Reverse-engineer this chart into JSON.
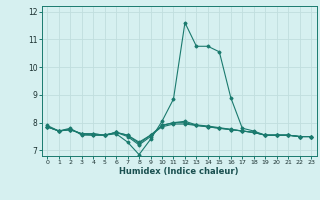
{
  "xlabel": "Humidex (Indice chaleur)",
  "background_color": "#d6f0f0",
  "grid_color": "#c0dede",
  "line_color": "#1a7a6e",
  "xlim": [
    -0.5,
    23.5
  ],
  "ylim": [
    6.8,
    12.2
  ],
  "yticks": [
    7,
    8,
    9,
    10,
    11,
    12
  ],
  "xticks": [
    0,
    1,
    2,
    3,
    4,
    5,
    6,
    7,
    8,
    9,
    10,
    11,
    12,
    13,
    14,
    15,
    16,
    17,
    18,
    19,
    20,
    21,
    22,
    23
  ],
  "series": [
    [
      7.9,
      7.7,
      7.8,
      7.55,
      7.55,
      7.55,
      7.6,
      7.3,
      6.85,
      7.4,
      8.05,
      8.85,
      11.6,
      10.75,
      10.75,
      10.55,
      8.9,
      7.8,
      7.7,
      7.55,
      7.55,
      7.55,
      7.5,
      7.5
    ],
    [
      7.85,
      7.7,
      7.75,
      7.6,
      7.55,
      7.55,
      7.65,
      7.5,
      7.2,
      7.5,
      7.9,
      8.0,
      8.0,
      7.9,
      7.85,
      7.8,
      7.75,
      7.7,
      7.65,
      7.55,
      7.55,
      7.55,
      7.5,
      7.5
    ],
    [
      7.85,
      7.7,
      7.75,
      7.6,
      7.6,
      7.55,
      7.65,
      7.55,
      7.25,
      7.55,
      7.85,
      7.95,
      7.95,
      7.9,
      7.85,
      7.8,
      7.75,
      7.7,
      7.65,
      7.55,
      7.55,
      7.55,
      7.5,
      7.5
    ],
    [
      7.85,
      7.7,
      7.75,
      7.6,
      7.6,
      7.55,
      7.65,
      7.55,
      7.3,
      7.55,
      7.9,
      8.0,
      8.05,
      7.92,
      7.88,
      7.82,
      7.76,
      7.7,
      7.65,
      7.55,
      7.55,
      7.55,
      7.5,
      7.5
    ]
  ]
}
